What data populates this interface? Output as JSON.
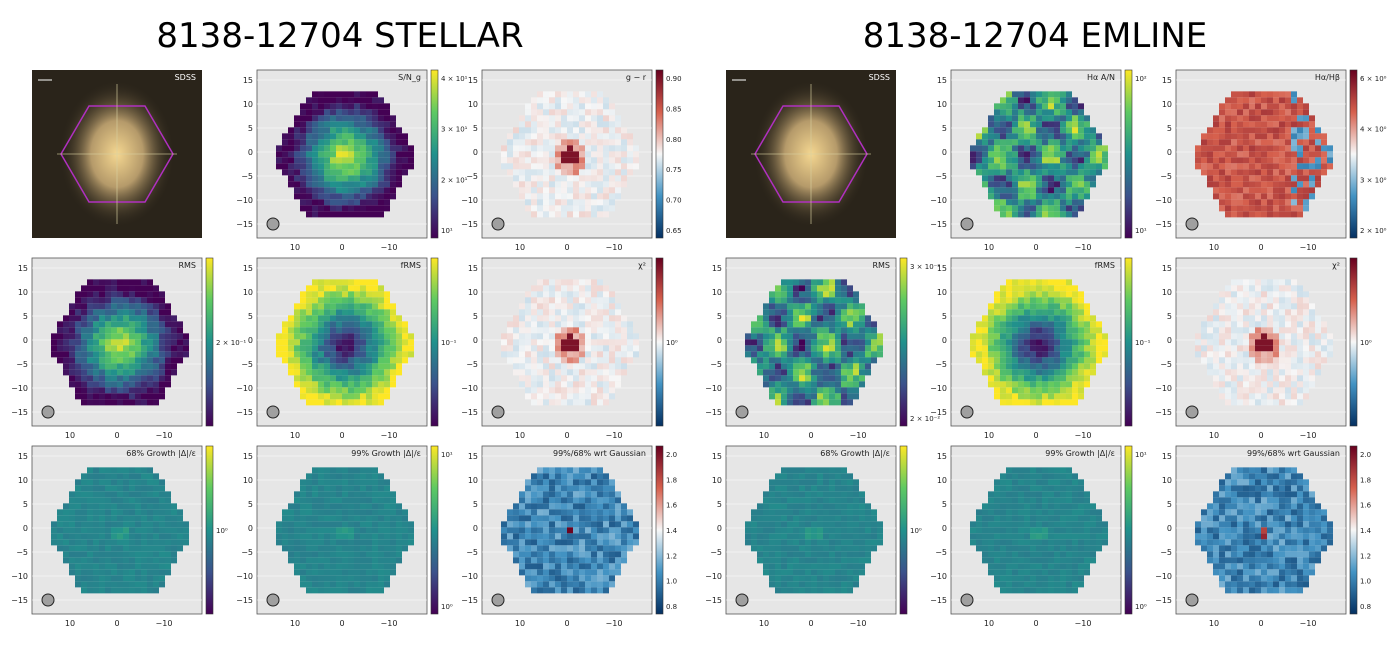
{
  "figure_titles": [
    "8138-12704 STELLAR",
    "8138-12704 EMLINE"
  ],
  "panel_grid": {
    "x_ticks": [
      "10",
      "0",
      "−10"
    ],
    "y_ticks": [
      "15",
      "10",
      "5",
      "0",
      "−5",
      "−10",
      "−15"
    ]
  },
  "colors": {
    "panel_bg": "#e6e6e6",
    "viridis": [
      "#440154",
      "#3b528b",
      "#21918c",
      "#5ec962",
      "#fde725"
    ],
    "rdbu_r": [
      "#053061",
      "#4393c3",
      "#f7f7f7",
      "#d6604d",
      "#67001f"
    ],
    "hexagon_outline": "#b030c0",
    "beam_circle": "#a0a0a0"
  },
  "chart_data": [
    {
      "figure": "STELLAR",
      "type": "heatmap",
      "title": "SDSS",
      "kind": "image"
    },
    {
      "figure": "STELLAR",
      "type": "heatmap",
      "title": "S/N_g",
      "cmap": "viridis",
      "cbar_ticks": [
        "4 × 10¹",
        "3 × 10¹",
        "2 × 10¹",
        "10¹"
      ],
      "pattern": "center"
    },
    {
      "figure": "STELLAR",
      "type": "heatmap",
      "title": "g − r",
      "cmap": "rdbu",
      "cbar_ticks": [
        "0.90",
        "0.85",
        "0.80",
        "0.75",
        "0.70",
        "0.65"
      ],
      "pattern": "core"
    },
    {
      "figure": "STELLAR",
      "type": "heatmap",
      "title": "RMS",
      "cmap": "viridis",
      "cbar_ticks": [
        "2 × 10⁻¹"
      ],
      "pattern": "center"
    },
    {
      "figure": "STELLAR",
      "type": "heatmap",
      "title": "fRMS",
      "cmap": "viridis",
      "cbar_ticks": [
        "10⁻¹"
      ],
      "pattern": "inverse"
    },
    {
      "figure": "STELLAR",
      "type": "heatmap",
      "title": "χ²",
      "cmap": "rdbu",
      "cbar_ticks": [
        "10⁰"
      ],
      "pattern": "core"
    },
    {
      "figure": "STELLAR",
      "type": "heatmap",
      "title": "68% Growth |Δ|/ε",
      "cmap": "viridis",
      "cbar_ticks": [
        "10⁰"
      ],
      "pattern": "flat"
    },
    {
      "figure": "STELLAR",
      "type": "heatmap",
      "title": "99% Growth |Δ|/ε",
      "cmap": "viridis",
      "cbar_ticks": [
        "10¹",
        "10⁰"
      ],
      "pattern": "flat"
    },
    {
      "figure": "STELLAR",
      "type": "heatmap",
      "title": "99%/68% wrt Gaussian",
      "cmap": "rdbu",
      "cbar_ticks": [
        "2.0",
        "1.8",
        "1.6",
        "1.4",
        "1.2",
        "1.0",
        "0.8"
      ],
      "pattern": "blue"
    },
    {
      "figure": "EMLINE",
      "type": "heatmap",
      "title": "SDSS",
      "kind": "image"
    },
    {
      "figure": "EMLINE",
      "type": "heatmap",
      "title": "Hα A/N",
      "cmap": "viridis",
      "cbar_ticks": [
        "10²",
        "10¹"
      ],
      "pattern": "patchy"
    },
    {
      "figure": "EMLINE",
      "type": "heatmap",
      "title": "Hα/Hβ",
      "cmap": "rdbu",
      "cbar_ticks": [
        "6 × 10⁰",
        "4 × 10⁰",
        "3 × 10⁰",
        "2 × 10⁰"
      ],
      "pattern": "red"
    },
    {
      "figure": "EMLINE",
      "type": "heatmap",
      "title": "RMS",
      "cmap": "viridis",
      "cbar_ticks": [
        "3 × 10⁻²",
        "2 × 10⁻²"
      ],
      "pattern": "patchy"
    },
    {
      "figure": "EMLINE",
      "type": "heatmap",
      "title": "fRMS",
      "cmap": "viridis",
      "cbar_ticks": [
        "10⁻¹"
      ],
      "pattern": "inverse"
    },
    {
      "figure": "EMLINE",
      "type": "heatmap",
      "title": "χ²",
      "cmap": "rdbu",
      "cbar_ticks": [
        "10⁰"
      ],
      "pattern": "core"
    },
    {
      "figure": "EMLINE",
      "type": "heatmap",
      "title": "68% Growth |Δ|/ε",
      "cmap": "viridis",
      "cbar_ticks": [
        "10⁰"
      ],
      "pattern": "flat"
    },
    {
      "figure": "EMLINE",
      "type": "heatmap",
      "title": "99% Growth |Δ|/ε",
      "cmap": "viridis",
      "cbar_ticks": [
        "10¹",
        "10⁰"
      ],
      "pattern": "flat"
    },
    {
      "figure": "EMLINE",
      "type": "heatmap",
      "title": "99%/68% wrt Gaussian",
      "cmap": "rdbu",
      "cbar_ticks": [
        "2.0",
        "1.8",
        "1.6",
        "1.4",
        "1.2",
        "1.0",
        "0.8"
      ],
      "pattern": "blue"
    }
  ]
}
